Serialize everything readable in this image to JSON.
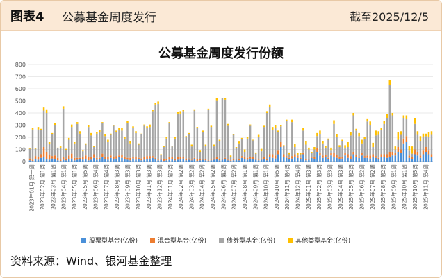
{
  "header": {
    "title": "图表4",
    "subtitle": "公募基金周度发行",
    "date": "截至2025/12/5"
  },
  "source": "资料来源：Wind、银河基金整理",
  "colors": {
    "stock": "#4a90d9",
    "mixed": "#ed7d31",
    "bond": "#a5a5a5",
    "other": "#ffc000"
  },
  "chart_data": {
    "type": "bar",
    "stacked": true,
    "title": "公募基金周度发行份额",
    "ylim": [
      0,
      800
    ],
    "yticks": [
      0,
      100,
      200,
      300,
      400,
      500,
      600,
      700,
      800
    ],
    "grid": true,
    "legend_position": "bottom",
    "x_tick_labels": [
      "2023年01月 第一周",
      "2023年02月 第1周",
      "2023年03月 第1周",
      "2023年04月 第1周",
      "2023年05月 第1周",
      "2023年05月 第5周",
      "2023年06月 第4周",
      "2023年07月 第4周",
      "2023年08月 第3周",
      "2023年09月 第3周",
      "2023年10月 第3周",
      "2023年11月 第3周",
      "2023年12月 第3周",
      "2024年01月 第2周",
      "2024年02月 第2周",
      "2024年03月 第2周",
      "2024年04月 第2周",
      "2024年05月 第2周",
      "2024年06月 第2周",
      "2024年07月 第2周",
      "2024年08月 第1周",
      "2024年09月 第1周",
      "2024年10月 第1周",
      "2024年10月 第5周",
      "2024年11月 第4周",
      "2024年12月 第4周",
      "2025年01月 第3周",
      "2025年02月 第3周",
      "2025年03月 第3周",
      "2025年04月 第3周",
      "2025年05月 第2周",
      "2025年06月 第2周",
      "2025年07月 第2周",
      "2025年08月 第2周",
      "2025年09月 第1周",
      "2025年10月 第1周",
      "2025年10月 第5周",
      "2025年11月 第4周"
    ],
    "series": [
      {
        "name": "股票型基金(亿份)",
        "values": [
          10,
          5,
          20,
          15,
          30,
          40,
          20,
          15,
          25,
          20,
          10,
          5,
          15,
          10,
          20,
          25,
          10,
          15,
          20,
          15,
          20,
          10,
          15,
          30,
          15,
          20,
          35,
          20,
          15,
          30,
          20,
          25,
          40,
          30,
          20,
          15,
          10,
          25,
          15,
          20,
          10,
          15,
          20,
          25,
          30,
          20,
          10,
          15,
          5,
          10,
          15,
          20,
          10,
          15,
          20,
          25,
          10,
          15,
          10,
          20,
          5,
          10,
          15,
          10,
          5,
          10,
          15,
          20,
          10,
          15,
          20,
          10,
          5,
          10,
          15,
          10,
          30,
          20,
          15,
          25,
          20,
          15,
          10,
          15,
          20,
          10,
          40,
          30,
          25,
          60,
          120,
          40,
          30,
          20,
          25,
          35,
          30,
          20,
          60,
          10,
          15,
          30,
          20,
          80,
          50,
          30,
          40,
          20,
          50,
          40,
          30,
          20,
          25,
          50,
          30,
          20,
          60,
          40,
          30,
          50,
          30,
          30,
          25,
          40,
          30,
          20,
          40,
          35,
          30,
          40,
          50,
          50,
          80,
          70,
          150,
          160,
          30,
          20,
          60,
          50,
          30,
          60,
          80,
          60,
          40
        ]
      },
      {
        "name": "混合型基金(亿份)",
        "values": [
          15,
          10,
          25,
          20,
          30,
          80,
          60,
          40,
          20,
          30,
          20,
          10,
          20,
          15,
          30,
          40,
          20,
          15,
          10,
          20,
          30,
          25,
          20,
          30,
          15,
          10,
          30,
          20,
          25,
          20,
          15,
          20,
          10,
          25,
          20,
          15,
          20,
          15,
          20,
          10,
          15,
          20,
          25,
          20,
          15,
          10,
          5,
          10,
          15,
          10,
          20,
          15,
          10,
          20,
          15,
          10,
          15,
          10,
          5,
          10,
          15,
          10,
          5,
          10,
          5,
          5,
          10,
          15,
          10,
          5,
          10,
          5,
          5,
          10,
          5,
          10,
          15,
          20,
          15,
          10,
          15,
          10,
          5,
          10,
          15,
          10,
          20,
          30,
          25,
          30,
          40,
          20,
          15,
          10,
          20,
          25,
          15,
          10,
          15,
          10,
          5,
          10,
          20,
          30,
          25,
          20,
          15,
          10,
          20,
          30,
          25,
          20,
          15,
          20,
          30,
          25,
          20,
          15,
          10,
          20,
          15,
          20,
          25,
          20,
          15,
          10,
          20,
          25,
          30,
          40,
          30,
          20,
          40,
          30,
          40,
          50,
          20,
          15,
          40,
          30,
          20,
          30,
          40,
          30,
          20
        ]
      },
      {
        "name": "债券型基金(亿份)",
        "values": [
          80,
          250,
          60,
          230,
          200,
          300,
          320,
          90,
          180,
          250,
          80,
          100,
          400,
          70,
          130,
          220,
          120,
          280,
          200,
          50,
          90,
          250,
          180,
          60,
          200,
          210,
          250,
          170,
          120,
          170,
          260,
          200,
          210,
          200,
          150,
          290,
          120,
          240,
          200,
          110,
          200,
          260,
          230,
          240,
          370,
          440,
          460,
          30,
          100,
          170,
          280,
          90,
          170,
          360,
          360,
          380,
          180,
          200,
          110,
          390,
          260,
          60,
          220,
          110,
          420,
          270,
          100,
          470,
          150,
          500,
          480,
          280,
          30,
          200,
          90,
          130,
          140,
          40,
          160,
          260,
          140,
          40,
          190,
          60,
          250,
          380,
          390,
          200,
          230,
          150,
          130,
          70,
          290,
          30,
          280,
          60,
          10,
          30,
          180,
          120,
          80,
          30,
          60,
          100,
          150,
          100,
          60,
          150,
          20,
          240,
          150,
          80,
          130,
          40,
          60,
          170,
          300,
          200,
          170,
          80,
          140,
          280,
          250,
          60,
          170,
          190,
          200,
          250,
          300,
          550,
          300,
          30,
          60,
          120,
          170,
          140,
          40,
          30,
          210,
          140,
          120,
          110,
          90,
          110,
          160
        ]
      },
      {
        "name": "其他类型基金(亿份)",
        "values": [
          5,
          10,
          5,
          20,
          10,
          25,
          30,
          15,
          10,
          20,
          5,
          10,
          20,
          10,
          15,
          20,
          10,
          15,
          20,
          5,
          10,
          15,
          20,
          10,
          15,
          20,
          10,
          15,
          20,
          10,
          5,
          10,
          15,
          20,
          10,
          15,
          20,
          10,
          15,
          10,
          5,
          10,
          15,
          20,
          10,
          15,
          20,
          5,
          10,
          15,
          10,
          5,
          10,
          15,
          20,
          10,
          5,
          10,
          15,
          10,
          5,
          10,
          15,
          10,
          5,
          10,
          15,
          20,
          10,
          5,
          10,
          15,
          10,
          5,
          10,
          15,
          10,
          20,
          15,
          10,
          5,
          10,
          15,
          20,
          10,
          15,
          20,
          25,
          20,
          15,
          10,
          5,
          10,
          15,
          20,
          25,
          15,
          10,
          20,
          30,
          15,
          10,
          20,
          25,
          30,
          20,
          15,
          10,
          25,
          30,
          20,
          15,
          10,
          25,
          40,
          30,
          20,
          15,
          25,
          30,
          20,
          25,
          30,
          35,
          40,
          30,
          20,
          25,
          30,
          40,
          20,
          25,
          60,
          30,
          20,
          30,
          40,
          60,
          50,
          30,
          40,
          30,
          20,
          40,
          30
        ]
      }
    ]
  }
}
